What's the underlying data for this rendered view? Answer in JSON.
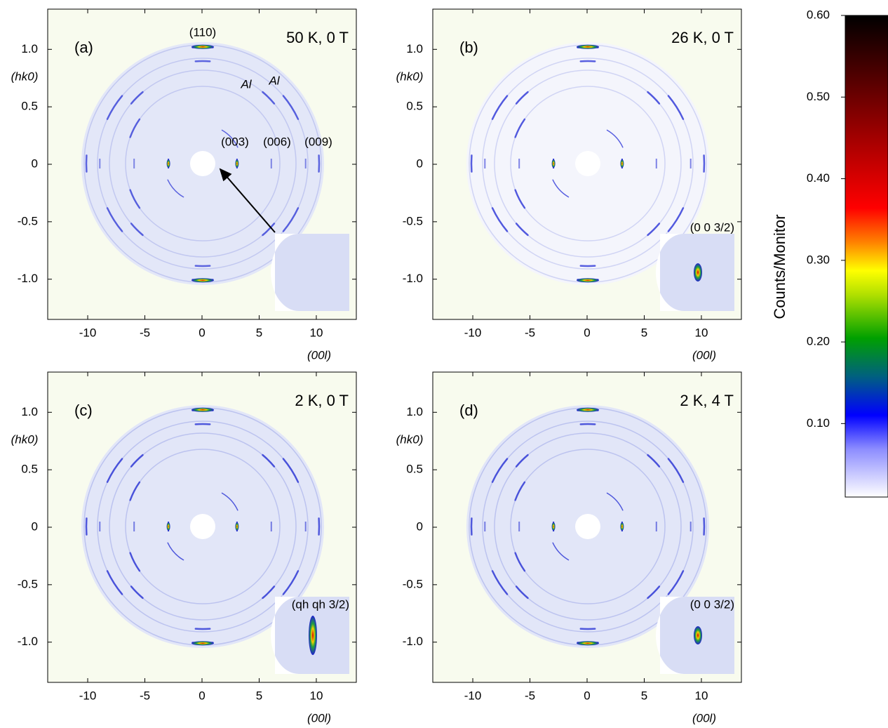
{
  "chart_data": [
    {
      "type": "image",
      "panel_label": "(a)",
      "condition": "50 K, 0 T",
      "annotations": [
        "(110)",
        "Al",
        "Al",
        "(003)",
        "(006)",
        "(009)"
      ],
      "x_label": "(00l)",
      "y_label": "(hk0)",
      "xlim": [
        -13.5,
        13.5
      ],
      "ylim": [
        -1.35,
        1.35
      ],
      "xticks": [
        -10,
        -5,
        0,
        5,
        10
      ],
      "yticks": [
        {
          "value": 1,
          "label": "1.0"
        },
        {
          "value": 0.5,
          "label": "0.5"
        },
        0,
        {
          "value": -0.5,
          "label": "-0.5"
        },
        {
          "value": -1,
          "label": "-1.0"
        }
      ]
    },
    {
      "type": "image",
      "panel_label": "(b)",
      "condition": "26 K, 0 T",
      "inset_label": "(0 0 3/2)",
      "x_label": "(00l)",
      "y_label": "(hk0)",
      "xlim": [
        -13.5,
        13.5
      ],
      "ylim": [
        -1.35,
        1.35
      ],
      "xticks": [
        -10,
        -5,
        0,
        5,
        10
      ],
      "yticks": [
        {
          "value": 1,
          "label": "1.0"
        },
        {
          "value": 0.5,
          "label": "0.5"
        },
        0,
        {
          "value": -0.5,
          "label": "-0.5"
        },
        {
          "value": -1,
          "label": "-1.0"
        }
      ]
    },
    {
      "type": "image",
      "panel_label": "(c)",
      "condition": "2 K, 0 T",
      "inset_label": "(qh qh 3/2)",
      "x_label": "(00l)",
      "y_label": "(hk0)",
      "xlim": [
        -13.5,
        13.5
      ],
      "ylim": [
        -1.35,
        1.35
      ],
      "xticks": [
        -10,
        -5,
        0,
        5,
        10
      ],
      "yticks": [
        {
          "value": 1,
          "label": "1.0"
        },
        {
          "value": 0.5,
          "label": "0.5"
        },
        0,
        {
          "value": -0.5,
          "label": "-0.5"
        },
        {
          "value": -1,
          "label": "-1.0"
        }
      ]
    },
    {
      "type": "image",
      "panel_label": "(d)",
      "condition": "2 K, 4 T",
      "inset_label": "(0 0 3/2)",
      "x_label": "(00l)",
      "y_label": "(hk0)",
      "xlim": [
        -13.5,
        13.5
      ],
      "ylim": [
        -1.35,
        1.35
      ],
      "xticks": [
        -10,
        -5,
        0,
        5,
        10
      ],
      "yticks": [
        {
          "value": 1,
          "label": "1.0"
        },
        {
          "value": 0.5,
          "label": "0.5"
        },
        0,
        {
          "value": -0.5,
          "label": "-0.5"
        },
        {
          "value": -1,
          "label": "-1.0"
        }
      ]
    },
    {
      "type": "colorbar",
      "label": "Counts/Monitor",
      "ylim": [
        0.01,
        0.6
      ],
      "yticks": [
        {
          "value": 0.1,
          "label": "0.10"
        },
        {
          "value": 0.2,
          "label": "0.20"
        },
        {
          "value": 0.3,
          "label": "0.30"
        },
        {
          "value": 0.4,
          "label": "0.40"
        },
        {
          "value": 0.5,
          "label": "0.50"
        },
        {
          "value": 0.6,
          "label": "0.60"
        }
      ]
    }
  ]
}
